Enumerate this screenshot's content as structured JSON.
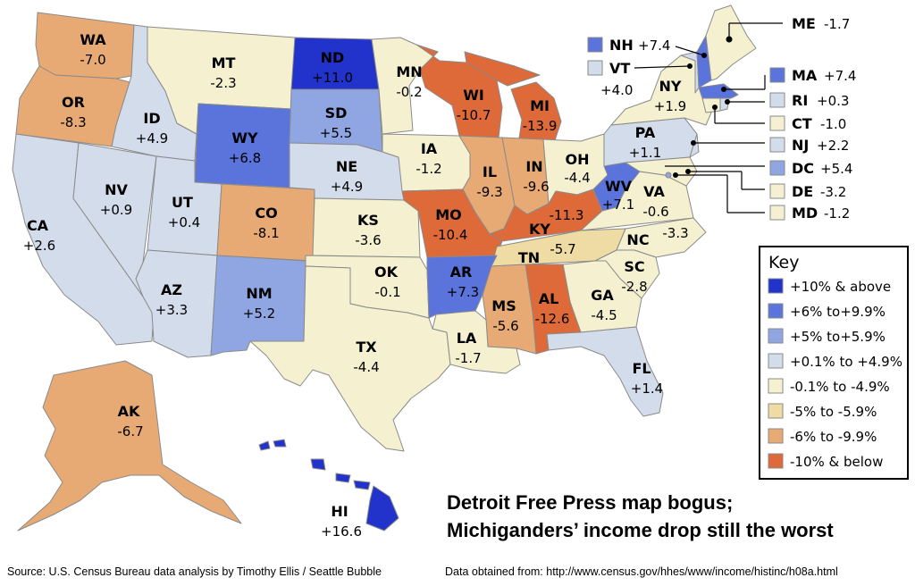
{
  "colors": {
    "c1": "#2233cc",
    "c2": "#5a74dc",
    "c3": "#8fa6e2",
    "c4": "#d3dcea",
    "c5": "#f4f0d0",
    "c6": "#efdca4",
    "c7": "#e8aa74",
    "c8": "#de6a3a",
    "border": "#8a8a8a"
  },
  "states": {
    "WA": {
      "abbr": "WA",
      "value": "-7.0"
    },
    "OR": {
      "abbr": "OR",
      "value": "-8.3"
    },
    "CA": {
      "abbr": "CA",
      "value": "+2.6"
    },
    "NV": {
      "abbr": "NV",
      "value": "+0.9"
    },
    "ID": {
      "abbr": "ID",
      "value": "+4.9"
    },
    "MT": {
      "abbr": "MT",
      "value": "-2.3"
    },
    "WY": {
      "abbr": "WY",
      "value": "+6.8"
    },
    "UT": {
      "abbr": "UT",
      "value": "+0.4"
    },
    "AZ": {
      "abbr": "AZ",
      "value": "+3.3"
    },
    "CO": {
      "abbr": "CO",
      "value": "-8.1"
    },
    "NM": {
      "abbr": "NM",
      "value": "+5.2"
    },
    "ND": {
      "abbr": "ND",
      "value": "+11.0"
    },
    "SD": {
      "abbr": "SD",
      "value": "+5.5"
    },
    "NE": {
      "abbr": "NE",
      "value": "+4.9"
    },
    "KS": {
      "abbr": "KS",
      "value": "-3.6"
    },
    "OK": {
      "abbr": "OK",
      "value": "-0.1"
    },
    "TX": {
      "abbr": "TX",
      "value": "-4.4"
    },
    "MN": {
      "abbr": "MN",
      "value": "-0.2"
    },
    "IA": {
      "abbr": "IA",
      "value": "-1.2"
    },
    "MO": {
      "abbr": "MO",
      "value": "-10.4"
    },
    "AR": {
      "abbr": "AR",
      "value": "+7.3"
    },
    "LA": {
      "abbr": "LA",
      "value": "-1.7"
    },
    "WI": {
      "abbr": "WI",
      "value": "-10.7"
    },
    "IL": {
      "abbr": "IL",
      "value": "-9.3"
    },
    "MI": {
      "abbr": "MI",
      "value": "-13.9"
    },
    "IN": {
      "abbr": "IN",
      "value": "-9.6"
    },
    "OH": {
      "abbr": "OH",
      "value": "-4.4"
    },
    "KY": {
      "abbr": "KY",
      "value": "-11.3"
    },
    "TN": {
      "abbr": "TN",
      "value": "-5.7"
    },
    "MS": {
      "abbr": "MS",
      "value": "-5.6"
    },
    "AL": {
      "abbr": "AL",
      "value": "-12.6"
    },
    "GA": {
      "abbr": "GA",
      "value": "-4.5"
    },
    "FL": {
      "abbr": "FL",
      "value": "+1.4"
    },
    "SC": {
      "abbr": "SC",
      "value": "-2.8"
    },
    "NC": {
      "abbr": "NC",
      "value": "-3.3"
    },
    "VA": {
      "abbr": "VA",
      "value": "-0.6"
    },
    "WV": {
      "abbr": "WV",
      "value": "+7.1"
    },
    "PA": {
      "abbr": "PA",
      "value": "+1.1"
    },
    "NY": {
      "abbr": "NY",
      "value": "+1.9"
    },
    "AK": {
      "abbr": "AK",
      "value": "-6.7"
    },
    "HI": {
      "abbr": "HI",
      "value": "+16.6"
    }
  },
  "callouts": {
    "ME": {
      "abbr": "ME",
      "value": "-1.7"
    },
    "NH": {
      "abbr": "NH",
      "value": "+7.4"
    },
    "VT": {
      "abbr": "VT",
      "value": "+4.0"
    },
    "MA": {
      "abbr": "MA",
      "value": "+7.4"
    },
    "RI": {
      "abbr": "RI",
      "value": "+0.3"
    },
    "CT": {
      "abbr": "CT",
      "value": "-1.0"
    },
    "NJ": {
      "abbr": "NJ",
      "value": "+2.2"
    },
    "DC": {
      "abbr": "DC",
      "value": "+5.4"
    },
    "DE": {
      "abbr": "DE",
      "value": "-3.2"
    },
    "MD": {
      "abbr": "MD",
      "value": "-1.2"
    }
  },
  "key": {
    "title": "Key",
    "items": [
      "+10% & above",
      "+6% to+9.9%",
      "+5% to+5.9%",
      "+0.1% to +4.9%",
      "-0.1% to -4.9%",
      "-5% to -5.9%",
      "-6% to -9.9%",
      "-10% & below"
    ]
  },
  "headline": {
    "line1": "Detroit Free Press map bogus;",
    "line2": "Michiganders’ income drop still the worst"
  },
  "footer": {
    "source": "Source: U.S. Census Bureau data analysis by Timothy Ellis / Seattle Bubble",
    "obtained": "Data obtained from: http://www.census.gov/hhes/www/income/histinc/h08a.html"
  }
}
